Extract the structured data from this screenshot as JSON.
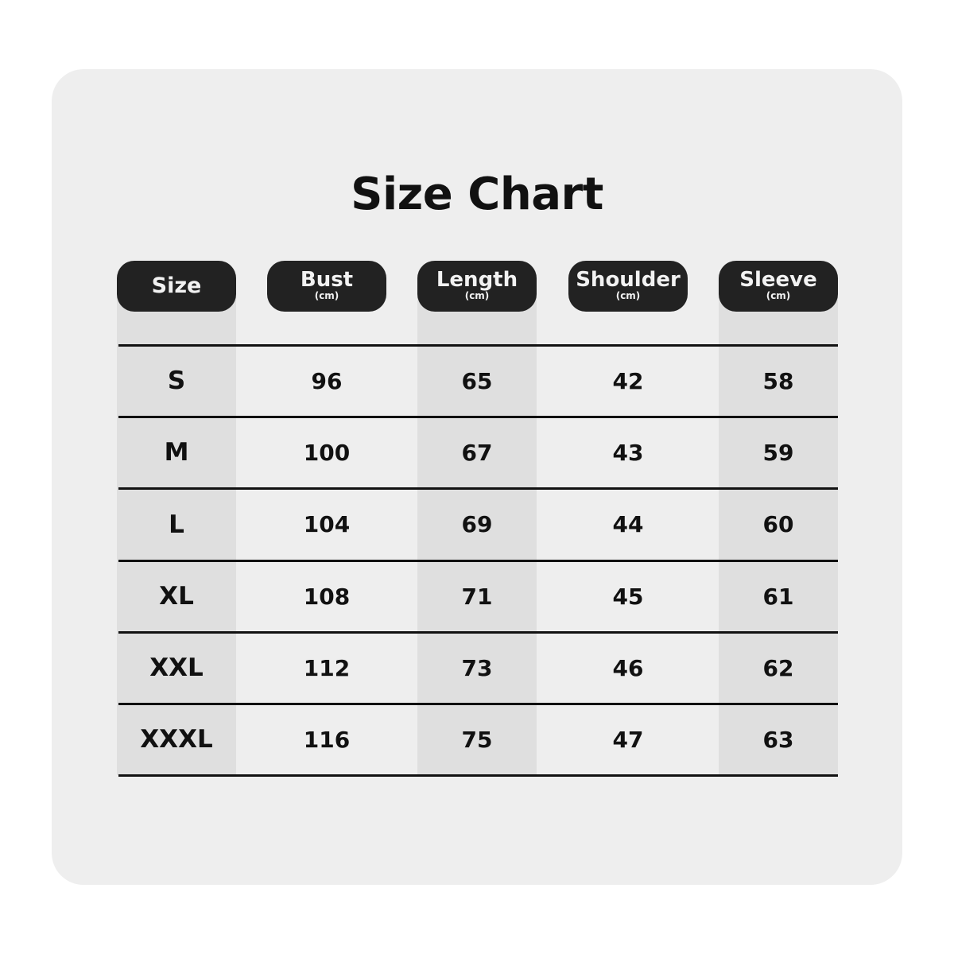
{
  "title": "Size Chart",
  "columns": [
    {
      "label": "Size",
      "unit": ""
    },
    {
      "label": "Bust",
      "unit": "(cm)"
    },
    {
      "label": "Length",
      "unit": "(cm)"
    },
    {
      "label": "Shoulder",
      "unit": "(cm)"
    },
    {
      "label": "Sleeve",
      "unit": "(cm)"
    }
  ],
  "rows": [
    [
      "S",
      "96",
      "65",
      "42",
      "58"
    ],
    [
      "M",
      "100",
      "67",
      "43",
      "59"
    ],
    [
      "L",
      "104",
      "69",
      "44",
      "60"
    ],
    [
      "XL",
      "108",
      "71",
      "45",
      "61"
    ],
    [
      "XXL",
      "112",
      "73",
      "46",
      "62"
    ],
    [
      "XXXL",
      "116",
      "75",
      "47",
      "63"
    ]
  ],
  "colors": {
    "card": "#eeeeee",
    "shaded_column": "#dfdfdf",
    "header_pill": "#222222",
    "text": "#111111"
  }
}
